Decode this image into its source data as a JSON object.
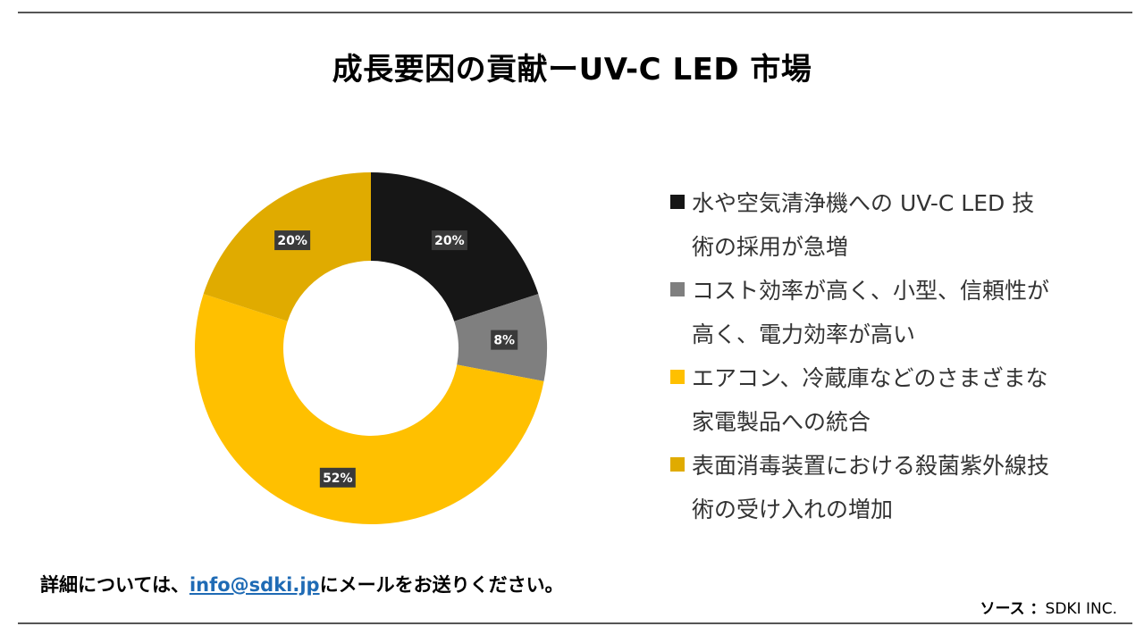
{
  "title": "成長要因の貢献ーUV-C LED 市場",
  "chart_data": {
    "type": "pie",
    "donut": true,
    "categories": [
      "水や空気清浄機へのUV-C LED 技術の採用が急増",
      "コスト効率が高く、小型、信頼性が高く、電力効率が高い",
      "エアコン、冷蔵庫などのさまざまな家電製品への統合",
      "表面消毒装置における殺菌紫外線技術の受け入れの増加"
    ],
    "values": [
      20,
      8,
      52,
      20
    ],
    "labels": [
      "20%",
      "8%",
      "52%",
      "20%"
    ],
    "colors": [
      "#161616",
      "#7f7f7f",
      "#ffc000",
      "#e0ab00"
    ],
    "legend_position": "right"
  },
  "legend": [
    {
      "lines": [
        "水や空気清浄機への UV-C LED 技",
        "術の採用が急増"
      ]
    },
    {
      "lines": [
        "コスト効率が高く、小型、信頼性が",
        "高く、電力効率が高い"
      ]
    },
    {
      "lines": [
        "エアコン、冷蔵庫などのさまざまな",
        "家電製品への統合"
      ]
    },
    {
      "lines": [
        "表面消毒装置における殺菌紫外線技",
        "術の受け入れの増加"
      ]
    }
  ],
  "footer": {
    "prefix": "詳細については、",
    "email": "info@sdki.jp",
    "suffix": "にメールをお送りください。"
  },
  "source": {
    "label": "ソース ：",
    "value": "SDKI INC."
  }
}
